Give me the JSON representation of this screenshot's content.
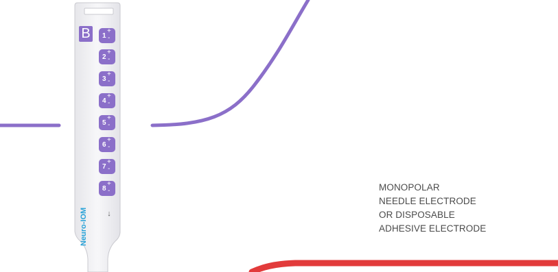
{
  "connector": {
    "badge": "B",
    "brand": "Neuro-IOM",
    "ground_symbol": "↓",
    "pins": [
      {
        "number": "1",
        "plus": "+",
        "minus": "-"
      },
      {
        "number": "2",
        "plus": "+",
        "minus": "-"
      },
      {
        "number": "3",
        "plus": "+",
        "minus": "-"
      },
      {
        "number": "4",
        "plus": "+",
        "minus": "-"
      },
      {
        "number": "5",
        "plus": "+",
        "minus": "-"
      },
      {
        "number": "6",
        "plus": "+",
        "minus": "-"
      },
      {
        "number": "7",
        "plus": "+",
        "minus": "-"
      },
      {
        "number": "8",
        "plus": "+",
        "minus": "-"
      }
    ]
  },
  "label": {
    "lines": [
      "MONOPOLAR",
      "NEEDLE ELECTRODE",
      "OR DISPOSABLE",
      "ADHESIVE ELECTRODE"
    ]
  },
  "colors": {
    "accent_purple": "#8b6fc9",
    "wire_red": "#e23b3b",
    "brand_blue": "#29a3d8",
    "connector_body": "#f2f2f4"
  }
}
